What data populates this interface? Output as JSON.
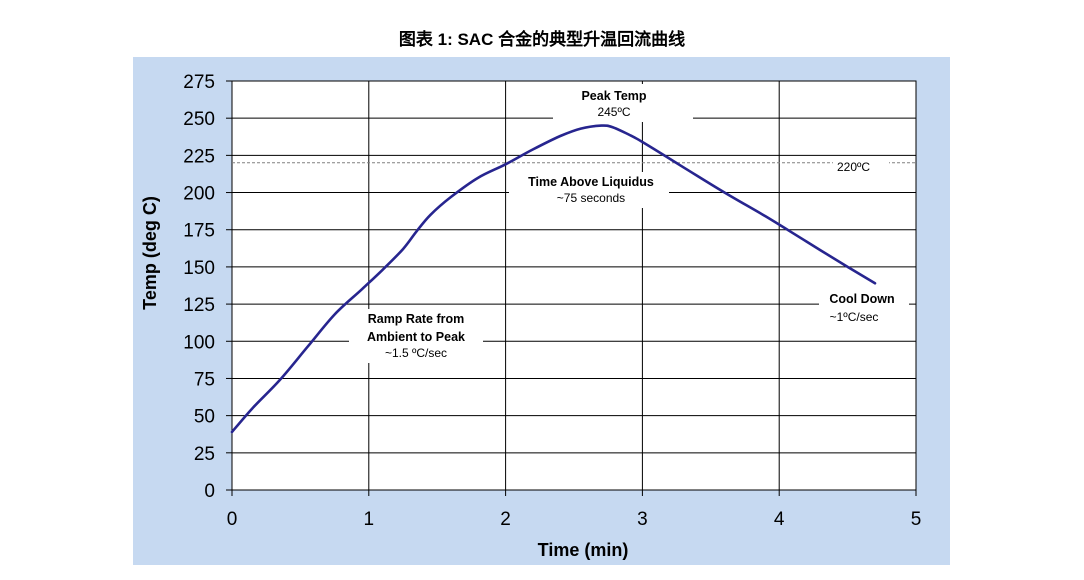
{
  "caption": "图表 1: SAC 合金的典型升温回流曲线",
  "colors": {
    "background": "#c6d9f1",
    "plot_area": "#ffffff",
    "curve": "#27258f",
    "grid": "#000000",
    "threshold": "#808080"
  },
  "chart_data": {
    "type": "line",
    "title": "",
    "xlabel": "Time (min)",
    "ylabel": "Temp (deg C)",
    "xlim": [
      0,
      5
    ],
    "ylim": [
      0,
      275
    ],
    "x_ticks": [
      0,
      1,
      2,
      3,
      4,
      5
    ],
    "y_ticks": [
      0,
      25,
      50,
      75,
      100,
      125,
      150,
      175,
      200,
      225,
      250,
      275
    ],
    "grid": true,
    "legend": "none",
    "series": [
      {
        "x": [
          0,
          0.15,
          0.35,
          0.55,
          0.75,
          0.95,
          1.1,
          1.25,
          1.35,
          1.45,
          1.6,
          1.8,
          2.0,
          2.2,
          2.4,
          2.55,
          2.7,
          2.78,
          2.9,
          3.0,
          3.3,
          3.6,
          3.9,
          4.2,
          4.5,
          4.7
        ],
        "y": [
          39,
          55,
          74,
          96,
          118,
          135,
          148,
          162,
          174,
          185,
          197,
          210,
          219,
          229,
          238,
          243,
          245,
          244,
          239,
          234,
          217,
          200,
          184,
          167,
          150,
          139
        ]
      }
    ],
    "reference_line": {
      "y": 220,
      "label": "220ºC"
    },
    "annotations": {
      "peak": {
        "line1": "Peak Temp",
        "line2": "245ºC"
      },
      "tal": {
        "line1": "Time Above Liquidus",
        "line2": "~75 seconds"
      },
      "ramp": {
        "line1": "Ramp Rate from",
        "line2": "Ambient to Peak",
        "line3": "~1.5 ºC/sec"
      },
      "cool": {
        "line1": "Cool Down",
        "line2": "~1ºC/sec"
      }
    }
  }
}
